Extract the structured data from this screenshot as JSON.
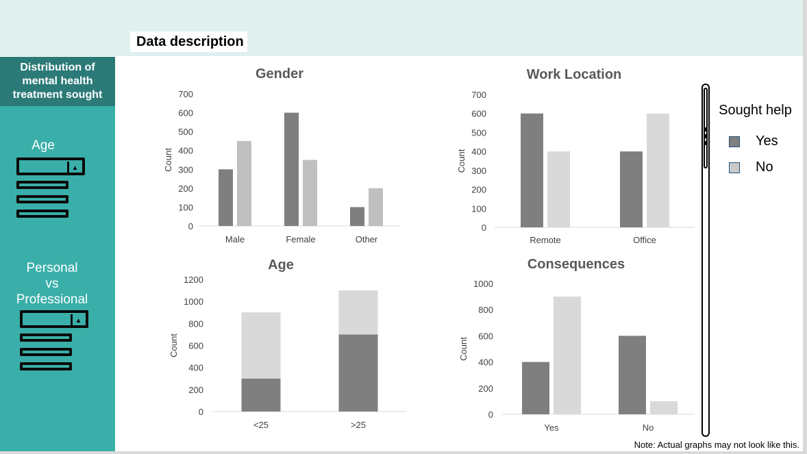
{
  "header": {
    "title": "Data description"
  },
  "sidebar": {
    "heading": "Distribution of mental health treatment sought",
    "filters": [
      {
        "label": "Age"
      },
      {
        "label": "Personal\nvs\nProfessional"
      }
    ]
  },
  "legend": {
    "title": "Sought help",
    "items": [
      {
        "label": "Yes",
        "color": "#7f7f7f"
      },
      {
        "label": "No",
        "color": "#c9c9c9"
      }
    ]
  },
  "note": "Note: Actual graphs may not look like this.",
  "chart_data": [
    {
      "type": "bar",
      "title": "Gender",
      "ylabel": "Count",
      "xlabel": "",
      "ylim": [
        0,
        700
      ],
      "yticks": [
        0,
        100,
        200,
        300,
        400,
        500,
        600,
        700
      ],
      "categories": [
        "Male",
        "Female",
        "Other"
      ],
      "series": [
        {
          "values": [
            300,
            600,
            100
          ],
          "color": "#7f7f7f"
        },
        {
          "values": [
            450,
            350,
            200
          ],
          "color": "#bfbfbf"
        }
      ],
      "grid": false
    },
    {
      "type": "bar",
      "title": "Work Location",
      "ylabel": "Count",
      "xlabel": "",
      "ylim": [
        0,
        700
      ],
      "yticks": [
        0,
        100,
        200,
        300,
        400,
        500,
        600,
        700
      ],
      "categories": [
        "Remote",
        "Office"
      ],
      "series": [
        {
          "values": [
            600,
            400
          ],
          "color": "#7f7f7f"
        },
        {
          "values": [
            400,
            600
          ],
          "color": "#d9d9d9"
        }
      ],
      "grid": false
    },
    {
      "type": "bar",
      "stacked": true,
      "title": "Age",
      "ylabel": "Count",
      "xlabel": "",
      "ylim": [
        0,
        1200
      ],
      "yticks": [
        0,
        200,
        400,
        600,
        800,
        1000,
        1200
      ],
      "categories": [
        "<25",
        ">25"
      ],
      "series": [
        {
          "values": [
            300,
            700
          ],
          "color": "#7f7f7f"
        },
        {
          "values": [
            600,
            400
          ],
          "color": "#d9d9d9"
        }
      ],
      "grid": false
    },
    {
      "type": "bar",
      "title": "Consequences",
      "ylabel": "Count",
      "xlabel": "",
      "ylim": [
        0,
        1000
      ],
      "yticks": [
        0,
        200,
        400,
        600,
        800,
        1000
      ],
      "categories": [
        "Yes",
        "No"
      ],
      "series": [
        {
          "values": [
            400,
            600
          ],
          "color": "#7f7f7f"
        },
        {
          "values": [
            900,
            100
          ],
          "color": "#d9d9d9"
        }
      ],
      "grid": false
    }
  ]
}
